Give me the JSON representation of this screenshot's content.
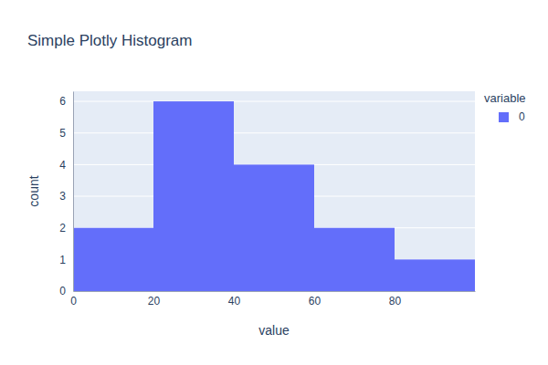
{
  "chart_data": {
    "type": "histogram",
    "title": "Simple Plotly Histogram",
    "x_label": "value",
    "y_label": "count",
    "legend_title": "variable",
    "series": [
      {
        "name": "0",
        "color": "#636efa",
        "values": [
          2,
          6,
          4,
          2,
          1
        ]
      }
    ],
    "bins": [
      0,
      20,
      40,
      60,
      80,
      100
    ],
    "xlim": [
      0,
      100
    ],
    "xticks": [
      0,
      20,
      40,
      60,
      80
    ],
    "ylim": [
      0,
      6.32
    ],
    "yticks": [
      0,
      1,
      2,
      3,
      4,
      5,
      6
    ],
    "grid": true,
    "legend": "right"
  }
}
